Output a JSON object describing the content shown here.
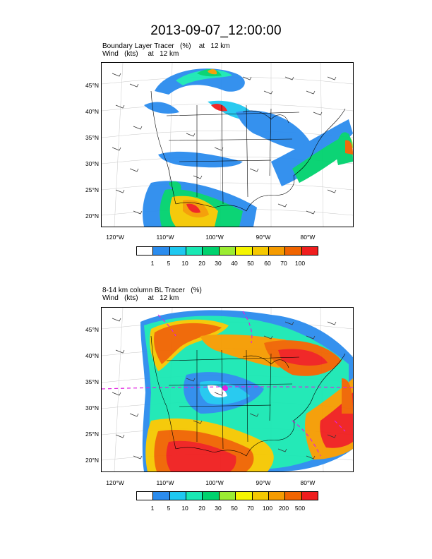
{
  "title": "2013-09-07_12:00:00",
  "panels": [
    {
      "subtitle_line1": "Boundary Layer Tracer   (%)    at   12 km",
      "subtitle_line2": "Wind   (kts)     at   12 km",
      "lat_labels": [
        "45°N",
        "40°N",
        "35°N",
        "30°N",
        "25°N",
        "20°N"
      ],
      "lon_labels": [
        "120°W",
        "110°W",
        "100°W",
        "90°W",
        "80°W"
      ],
      "colorbar_labels": [
        "1",
        "5",
        "10",
        "20",
        "30",
        "40",
        "50",
        "60",
        "70",
        "100"
      ]
    },
    {
      "subtitle_line1": "8-14 km column BL Tracer   (%)",
      "subtitle_line2": "Wind   (kts)     at   12 km",
      "lat_labels": [
        "45°N",
        "40°N",
        "35°N",
        "30°N",
        "25°N",
        "20°N"
      ],
      "lon_labels": [
        "120°W",
        "110°W",
        "100°W",
        "90°W",
        "80°W"
      ],
      "colorbar_labels": [
        "1",
        "5",
        "10",
        "20",
        "30",
        "50",
        "70",
        "100",
        "200",
        "500"
      ]
    }
  ],
  "colorbar_colors": [
    "#ffffff",
    "#2b8cee",
    "#1ec8f0",
    "#19e8b4",
    "#00d26e",
    "#9bec32",
    "#f5f500",
    "#f5c800",
    "#f59b00",
    "#f06400",
    "#f01e1e"
  ]
}
